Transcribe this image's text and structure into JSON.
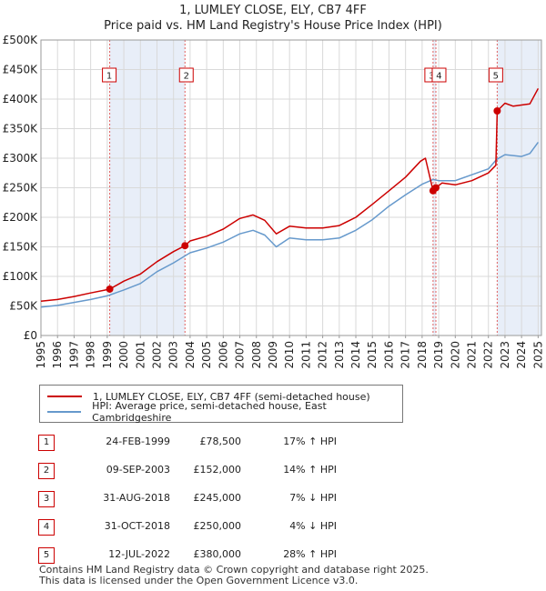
{
  "chart_data": {
    "type": "line",
    "title_line1": "1, LUMLEY CLOSE, ELY, CB7 4FF",
    "title_line2": "Price paid vs. HM Land Registry's House Price Index (HPI)",
    "xlim": [
      1995,
      2025.2
    ],
    "ylim": [
      0,
      500000
    ],
    "y_ticks": [
      {
        "value": 0,
        "label": "£0"
      },
      {
        "value": 50000,
        "label": "£50K"
      },
      {
        "value": 100000,
        "label": "£100K"
      },
      {
        "value": 150000,
        "label": "£150K"
      },
      {
        "value": 200000,
        "label": "£200K"
      },
      {
        "value": 250000,
        "label": "£250K"
      },
      {
        "value": 300000,
        "label": "£300K"
      },
      {
        "value": 350000,
        "label": "£350K"
      },
      {
        "value": 400000,
        "label": "£400K"
      },
      {
        "value": 450000,
        "label": "£450K"
      },
      {
        "value": 500000,
        "label": "£500K"
      }
    ],
    "x_ticks": [
      "1995",
      "1996",
      "1997",
      "1998",
      "1999",
      "2000",
      "2001",
      "2002",
      "2003",
      "2004",
      "2005",
      "2006",
      "2007",
      "2008",
      "2009",
      "2010",
      "2011",
      "2012",
      "2013",
      "2014",
      "2015",
      "2016",
      "2017",
      "2018",
      "2019",
      "2020",
      "2021",
      "2022",
      "2023",
      "2024",
      "2025"
    ],
    "series": [
      {
        "name": "1, LUMLEY CLOSE, ELY, CB7 4FF (semi-detached house)",
        "color": "#cc0000",
        "points": [
          [
            1995,
            58000
          ],
          [
            1996,
            61000
          ],
          [
            1997,
            66000
          ],
          [
            1998,
            72000
          ],
          [
            1999.15,
            78500
          ],
          [
            2000,
            92000
          ],
          [
            2001,
            104000
          ],
          [
            2002,
            125000
          ],
          [
            2003,
            142000
          ],
          [
            2003.69,
            152000
          ],
          [
            2004,
            160000
          ],
          [
            2005,
            168000
          ],
          [
            2006,
            180000
          ],
          [
            2007,
            198000
          ],
          [
            2007.8,
            204000
          ],
          [
            2008.5,
            195000
          ],
          [
            2009.2,
            172000
          ],
          [
            2010,
            185000
          ],
          [
            2011,
            182000
          ],
          [
            2012,
            182000
          ],
          [
            2013,
            186000
          ],
          [
            2014,
            200000
          ],
          [
            2015,
            222000
          ],
          [
            2016,
            245000
          ],
          [
            2017,
            268000
          ],
          [
            2017.9,
            295000
          ],
          [
            2018.2,
            300000
          ],
          [
            2018.66,
            245000
          ],
          [
            2018.83,
            250000
          ],
          [
            2019.2,
            258000
          ],
          [
            2020,
            255000
          ],
          [
            2021,
            262000
          ],
          [
            2022,
            275000
          ],
          [
            2022.45,
            288000
          ],
          [
            2022.53,
            380000
          ],
          [
            2023,
            393000
          ],
          [
            2023.5,
            388000
          ],
          [
            2024,
            390000
          ],
          [
            2024.5,
            392000
          ],
          [
            2025,
            418000
          ]
        ]
      },
      {
        "name": "HPI: Average price, semi-detached house, East Cambridgeshire",
        "color": "#6699cc",
        "points": [
          [
            1995,
            48000
          ],
          [
            1996,
            51000
          ],
          [
            1997,
            56000
          ],
          [
            1998,
            61000
          ],
          [
            1999,
            67000
          ],
          [
            2000,
            77000
          ],
          [
            2001,
            88000
          ],
          [
            2002,
            108000
          ],
          [
            2003,
            123000
          ],
          [
            2004,
            140000
          ],
          [
            2005,
            148000
          ],
          [
            2006,
            158000
          ],
          [
            2007,
            172000
          ],
          [
            2007.8,
            178000
          ],
          [
            2008.5,
            170000
          ],
          [
            2009.2,
            150000
          ],
          [
            2010,
            165000
          ],
          [
            2011,
            162000
          ],
          [
            2012,
            162000
          ],
          [
            2013,
            165000
          ],
          [
            2014,
            178000
          ],
          [
            2015,
            196000
          ],
          [
            2016,
            219000
          ],
          [
            2017,
            238000
          ],
          [
            2018,
            256000
          ],
          [
            2018.66,
            264000
          ],
          [
            2019,
            262000
          ],
          [
            2020,
            262000
          ],
          [
            2021,
            272000
          ],
          [
            2022,
            282000
          ],
          [
            2022.5,
            298000
          ],
          [
            2023,
            306000
          ],
          [
            2024,
            303000
          ],
          [
            2024.5,
            308000
          ],
          [
            2025,
            327000
          ]
        ]
      }
    ],
    "sales": [
      {
        "label": "1",
        "x": 1999.15,
        "value": 78500
      },
      {
        "label": "2",
        "x": 2003.69,
        "value": 152000
      },
      {
        "label": "3",
        "x": 2018.66,
        "value": 245000
      },
      {
        "label": "4",
        "x": 2018.83,
        "value": 250000
      },
      {
        "label": "5",
        "x": 2022.53,
        "value": 380000
      }
    ],
    "shaded_periods": [
      [
        1999.15,
        2003.69
      ],
      [
        2018.66,
        2018.83
      ],
      [
        2022.53,
        2025.2
      ]
    ]
  },
  "legend": {
    "property_label": "1, LUMLEY CLOSE, ELY, CB7 4FF (semi-detached house)",
    "hpi_label": "HPI: Average price, semi-detached house, East Cambridgeshire"
  },
  "sales_table": [
    {
      "num": "1",
      "date": "24-FEB-1999",
      "price": "£78,500",
      "hpi": "17% ↑ HPI"
    },
    {
      "num": "2",
      "date": "09-SEP-2003",
      "price": "£152,000",
      "hpi": "14% ↑ HPI"
    },
    {
      "num": "3",
      "date": "31-AUG-2018",
      "price": "£245,000",
      "hpi": "7% ↓ HPI"
    },
    {
      "num": "4",
      "date": "31-OCT-2018",
      "price": "£250,000",
      "hpi": "4% ↓ HPI"
    },
    {
      "num": "5",
      "date": "12-JUL-2022",
      "price": "£380,000",
      "hpi": "28% ↑ HPI"
    }
  ],
  "footer": {
    "line1": "Contains HM Land Registry data © Crown copyright and database right 2025.",
    "line2": "This data is licensed under the Open Government Licence v3.0."
  }
}
